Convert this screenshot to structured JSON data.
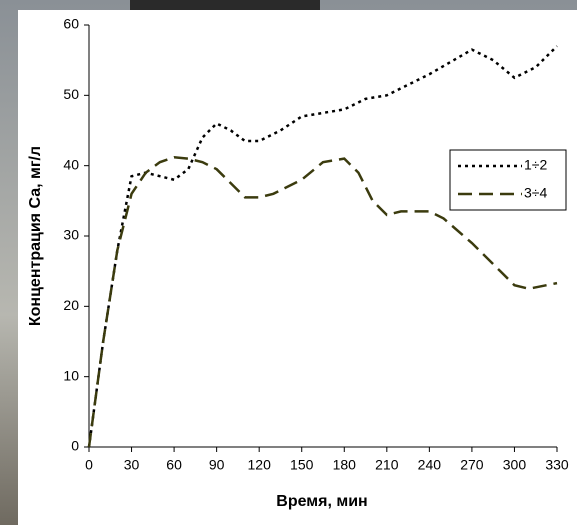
{
  "chart_data": {
    "type": "line",
    "x_label": "Время, мин",
    "y_label": "Концентрация Са, мг/л",
    "xlim": [
      0,
      330
    ],
    "xticks": [
      0,
      30,
      60,
      90,
      120,
      150,
      180,
      210,
      240,
      270,
      300,
      330
    ],
    "ylim": [
      0,
      60
    ],
    "yticks": [
      0,
      10,
      20,
      30,
      40,
      50,
      60
    ],
    "legend": "right",
    "series": [
      {
        "name": "1÷2",
        "color": "#000000",
        "style": "dotted",
        "x": [
          0,
          10,
          20,
          30,
          40,
          50,
          60,
          70,
          80,
          90,
          100,
          110,
          120,
          135,
          150,
          165,
          180,
          195,
          210,
          240,
          270,
          285,
          300,
          315,
          330
        ],
        "values": [
          0,
          15,
          28,
          38.5,
          39,
          38.5,
          38,
          39.5,
          44,
          46,
          45,
          43.5,
          43.5,
          45,
          47,
          47.5,
          48,
          49.5,
          50,
          53,
          56.5,
          55,
          52.5,
          54,
          57
        ]
      },
      {
        "name": "3÷4",
        "color": "#3b3b0e",
        "style": "dashed",
        "x": [
          0,
          10,
          20,
          30,
          40,
          50,
          60,
          70,
          80,
          90,
          100,
          110,
          120,
          130,
          150,
          165,
          180,
          190,
          200,
          210,
          220,
          240,
          250,
          270,
          290,
          300,
          310,
          330
        ],
        "values": [
          0,
          15,
          28,
          36,
          39,
          40.5,
          41.2,
          41,
          40.5,
          39.5,
          37.5,
          35.5,
          35.5,
          36,
          38,
          40.5,
          41,
          39,
          35,
          33,
          33.5,
          33.5,
          32.5,
          29,
          25,
          23,
          22.5,
          23.3
        ]
      }
    ]
  }
}
